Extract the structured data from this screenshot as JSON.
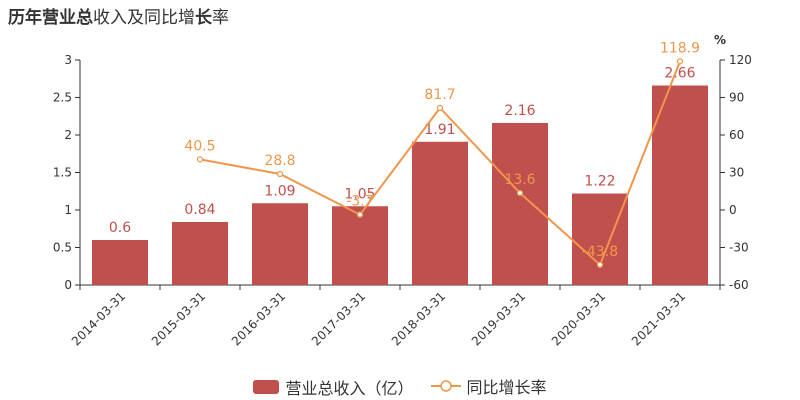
{
  "title": {
    "parts": [
      {
        "text": "历年",
        "bold": true
      },
      {
        "text": "营业总",
        "bold": true
      },
      {
        "text": "收入及同比增",
        "bold": false
      },
      {
        "text": "长",
        "bold": true
      },
      {
        "text": "率",
        "bold": false
      }
    ]
  },
  "colors": {
    "bar": "#c0504d",
    "bar_label": "#c0504d",
    "line": "#f0964b",
    "line_label": "#f0964b",
    "axis": "#333333",
    "grid": "#e8e8e8"
  },
  "legend": {
    "bar_label": "营业总收入（亿）",
    "line_label": "同比增长率"
  },
  "chart_data": {
    "type": "bar",
    "categories": [
      "2014-03-31",
      "2015-03-31",
      "2016-03-31",
      "2017-03-31",
      "2018-03-31",
      "2019-03-31",
      "2020-03-31",
      "2021-03-31"
    ],
    "series": [
      {
        "name": "营业总收入（亿）",
        "type": "bar",
        "axis": "left",
        "values": [
          0.6,
          0.84,
          1.09,
          1.05,
          1.91,
          2.16,
          1.22,
          2.66
        ],
        "labels": [
          "0.6",
          "0.84",
          "1.09",
          "1.05",
          "1.91",
          "2.16",
          "1.22",
          "2.66"
        ]
      },
      {
        "name": "同比增长率",
        "type": "line",
        "axis": "right",
        "values": [
          null,
          40.5,
          28.8,
          -3.7,
          81.7,
          13.6,
          -43.8,
          118.9
        ],
        "labels": [
          "",
          "40.5",
          "28.8",
          "-3.7",
          "81.7",
          "13.6",
          "-43.8",
          "118.9"
        ]
      }
    ],
    "y_left": {
      "lim": [
        0,
        3
      ],
      "ticks": [
        "0",
        "0.5",
        "1",
        "1.5",
        "2",
        "2.5",
        "3"
      ]
    },
    "y_right": {
      "lim": [
        -60,
        120
      ],
      "ticks": [
        "-60",
        "-30",
        "0",
        "30",
        "60",
        "90",
        "120"
      ],
      "unit": "%"
    }
  }
}
